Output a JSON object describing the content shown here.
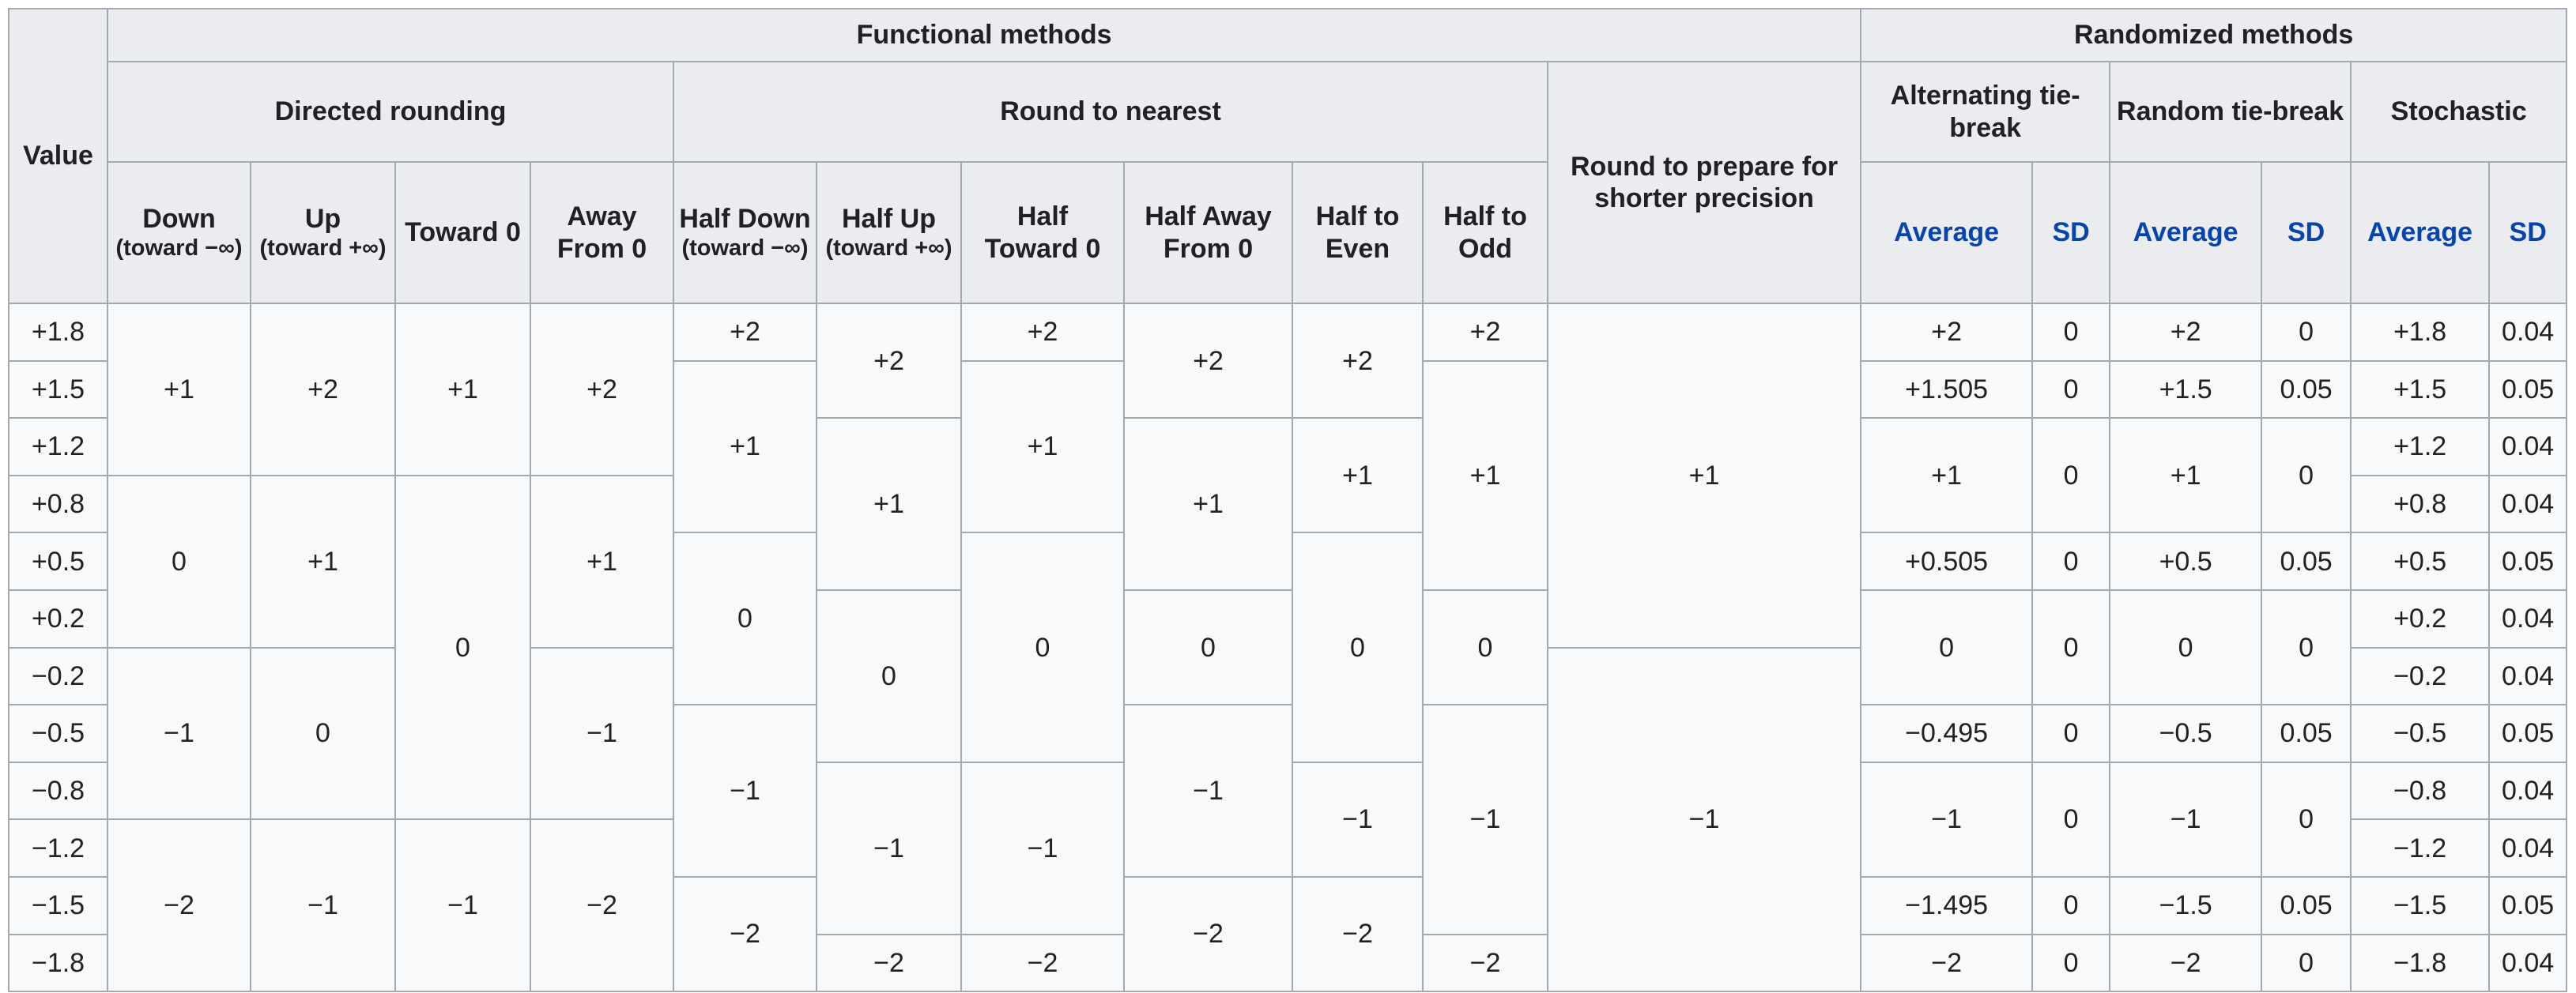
{
  "table": {
    "header": [
      [
        {
          "text": "Value"
        },
        {
          "text": "Functional methods"
        },
        {
          "text": "Randomized methods"
        }
      ],
      [
        {
          "text": "Directed rounding"
        },
        {
          "text": "Round to nearest"
        },
        {
          "text": "Round to prepare for shorter precision"
        },
        {
          "text": "Alternating tie-break"
        },
        {
          "text": "Random tie-break"
        },
        {
          "text": "Stochastic"
        }
      ],
      [
        {
          "text": "Down",
          "note": "(toward −∞)"
        },
        {
          "text": "Up",
          "note": "(toward +∞)"
        },
        {
          "text": "Toward 0"
        },
        {
          "text": "Away From 0"
        },
        {
          "text": "Half Down",
          "note": "(toward −∞)"
        },
        {
          "text": "Half Up",
          "note": "(toward +∞)"
        },
        {
          "text": "Half Toward 0"
        },
        {
          "text": "Half Away From 0"
        },
        {
          "text": "Half to Even"
        },
        {
          "text": "Half to Odd"
        },
        {
          "text": "Average"
        },
        {
          "text": "SD"
        },
        {
          "text": "Average"
        },
        {
          "text": "SD"
        },
        {
          "text": "Average"
        },
        {
          "text": "SD"
        }
      ]
    ],
    "columns": [
      [
        "+1.8",
        "+1.5",
        "+1.2",
        "+0.8",
        "+0.5",
        "+0.2",
        "−0.2",
        "−0.5",
        "−0.8",
        "−1.2",
        "−1.5",
        "−1.8"
      ],
      [
        "+1",
        "0",
        "−1",
        "−2"
      ],
      [
        "+2",
        "+1",
        "0",
        "−1"
      ],
      [
        "+1",
        "0",
        "−1"
      ],
      [
        "+2",
        "+1",
        "−1",
        "−2"
      ],
      [
        "+2",
        "+1",
        "0",
        "−1",
        "−2"
      ],
      [
        "+2",
        "+1",
        "0",
        "−1",
        "−2"
      ],
      [
        "+2",
        "+1",
        "0",
        "−1",
        "−2"
      ],
      [
        "+2",
        "+1",
        "0",
        "−1",
        "−2"
      ],
      [
        "+2",
        "+1",
        "0",
        "−1",
        "−2"
      ],
      [
        "+2",
        "+1",
        "0",
        "−1",
        "−2"
      ],
      [
        "+1",
        "−1"
      ],
      [
        "+2",
        "+1.505",
        "+1",
        "+0.505",
        "0",
        "−0.495",
        "−1",
        "−1.495",
        "−2"
      ],
      [
        "0",
        "0",
        "0",
        "0",
        "0",
        "0",
        "0",
        "0",
        "0"
      ],
      [
        "+2",
        "+1.5",
        "+1",
        "+0.5",
        "0",
        "−0.5",
        "−1",
        "−1.5",
        "−2"
      ],
      [
        "0",
        "0.05",
        "0",
        "0.05",
        "0",
        "0.05",
        "0",
        "0.05",
        "0"
      ],
      [
        "+1.8",
        "+1.5",
        "+1.2",
        "+0.8",
        "+0.5",
        "+0.2",
        "−0.2",
        "−0.5",
        "−0.8",
        "−1.2",
        "−1.5",
        "−1.8"
      ],
      [
        "0.04",
        "0.05",
        "0.04",
        "0.04",
        "0.05",
        "0.04",
        "0.04",
        "0.05",
        "0.04",
        "0.04",
        "0.05",
        "0.04"
      ]
    ]
  }
}
